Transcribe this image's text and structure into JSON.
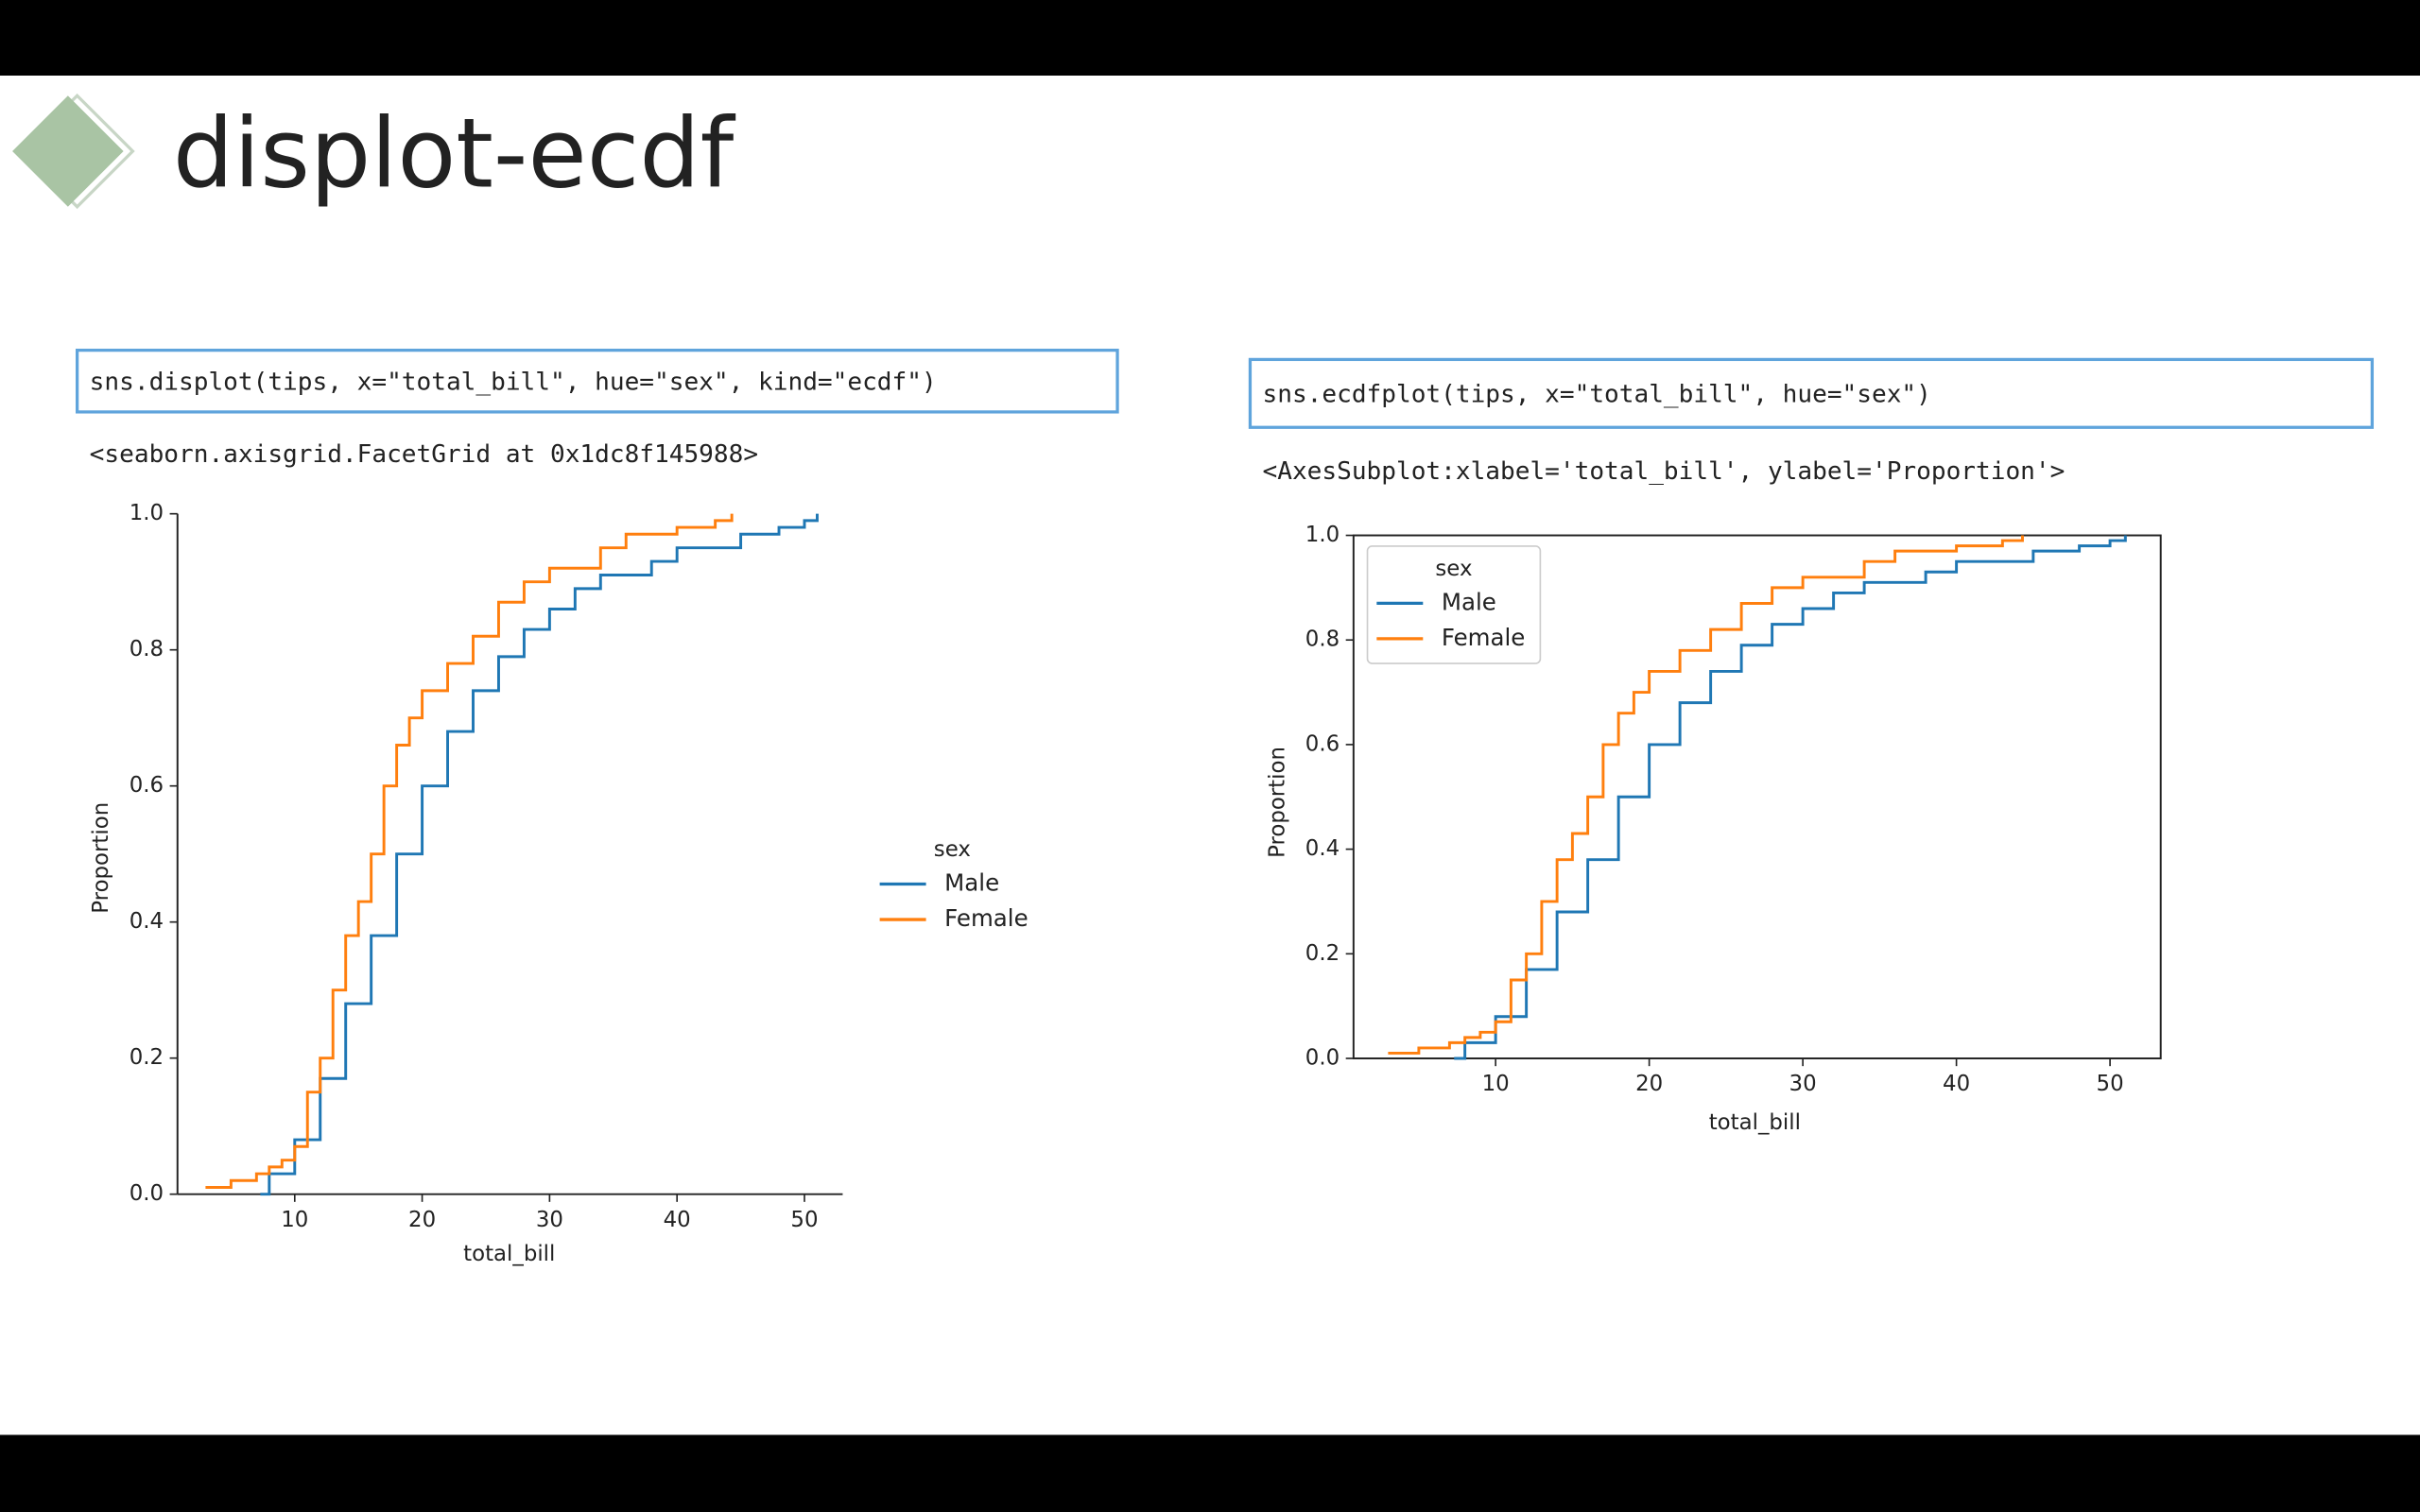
{
  "header": {
    "title": "displot-ecdf"
  },
  "cells": [
    {
      "code": "sns.displot(tips, x=\"total_bill\", hue=\"sex\", kind=\"ecdf\")",
      "output": "<seaborn.axisgrid.FacetGrid at 0x1dc8f145988>"
    },
    {
      "code": "sns.ecdfplot(tips, x=\"total_bill\", hue=\"sex\")",
      "output": "<AxesSubplot:xlabel='total_bill', ylabel='Proportion'>"
    }
  ],
  "chart_data": [
    {
      "type": "line",
      "drawstyle": "steps-post",
      "x_label": "total_bill",
      "y_label": "Proportion",
      "legend_title": "sex",
      "legend": "outside right",
      "frame": false,
      "xlim": [
        0.8,
        53
      ],
      "ylim": [
        0,
        1
      ],
      "xticks": [
        10,
        20,
        30,
        40,
        50
      ],
      "yticks": [
        {
          "value": 0,
          "label": "0.0"
        },
        0.2,
        0.4,
        0.6,
        0.8,
        {
          "value": 1,
          "label": "1.0"
        }
      ],
      "series": [
        {
          "name": "Male",
          "color": "#1f77b4",
          "x": [
            7.3,
            8,
            10,
            12,
            14,
            16,
            18,
            20,
            22,
            24,
            26,
            28,
            30,
            32,
            34,
            38,
            40,
            45,
            48,
            50,
            51
          ],
          "values": [
            0,
            0.03,
            0.08,
            0.17,
            0.28,
            0.38,
            0.5,
            0.6,
            0.68,
            0.74,
            0.79,
            0.83,
            0.86,
            0.89,
            0.91,
            0.93,
            0.95,
            0.97,
            0.98,
            0.99,
            1.0
          ]
        },
        {
          "name": "Female",
          "color": "#ff7f0e",
          "x": [
            3,
            5,
            7,
            8,
            9,
            10,
            11,
            12,
            13,
            14,
            15,
            16,
            17,
            18,
            19,
            20,
            22,
            24,
            26,
            28,
            30,
            34,
            36,
            40,
            43,
            44.3
          ],
          "values": [
            0.01,
            0.02,
            0.03,
            0.04,
            0.05,
            0.07,
            0.15,
            0.2,
            0.3,
            0.38,
            0.43,
            0.5,
            0.6,
            0.66,
            0.7,
            0.74,
            0.78,
            0.82,
            0.87,
            0.9,
            0.92,
            0.95,
            0.97,
            0.98,
            0.99,
            1.0
          ]
        }
      ]
    },
    {
      "type": "line",
      "drawstyle": "steps-post",
      "x_label": "total_bill",
      "y_label": "Proportion",
      "legend_title": "sex",
      "legend": "upper left",
      "frame": true,
      "xlim": [
        0.75,
        53.3
      ],
      "ylim": [
        0,
        1
      ],
      "xticks": [
        10,
        20,
        30,
        40,
        50
      ],
      "yticks": [
        {
          "value": 0,
          "label": "0.0"
        },
        0.2,
        0.4,
        0.6,
        0.8,
        {
          "value": 1,
          "label": "1.0"
        }
      ],
      "series": [
        {
          "name": "Male",
          "color": "#1f77b4",
          "x": [
            7.3,
            8,
            10,
            12,
            14,
            16,
            18,
            20,
            22,
            24,
            26,
            28,
            30,
            32,
            34,
            38,
            40,
            45,
            48,
            50,
            51
          ],
          "values": [
            0,
            0.03,
            0.08,
            0.17,
            0.28,
            0.38,
            0.5,
            0.6,
            0.68,
            0.74,
            0.79,
            0.83,
            0.86,
            0.89,
            0.91,
            0.93,
            0.95,
            0.97,
            0.98,
            0.99,
            1.0
          ]
        },
        {
          "name": "Female",
          "color": "#ff7f0e",
          "x": [
            3,
            5,
            7,
            8,
            9,
            10,
            11,
            12,
            13,
            14,
            15,
            16,
            17,
            18,
            19,
            20,
            22,
            24,
            26,
            28,
            30,
            34,
            36,
            40,
            43,
            44.3
          ],
          "values": [
            0.01,
            0.02,
            0.03,
            0.04,
            0.05,
            0.07,
            0.15,
            0.2,
            0.3,
            0.38,
            0.43,
            0.5,
            0.6,
            0.66,
            0.7,
            0.74,
            0.78,
            0.82,
            0.87,
            0.9,
            0.92,
            0.95,
            0.97,
            0.98,
            0.99,
            1.0
          ]
        }
      ]
    }
  ]
}
